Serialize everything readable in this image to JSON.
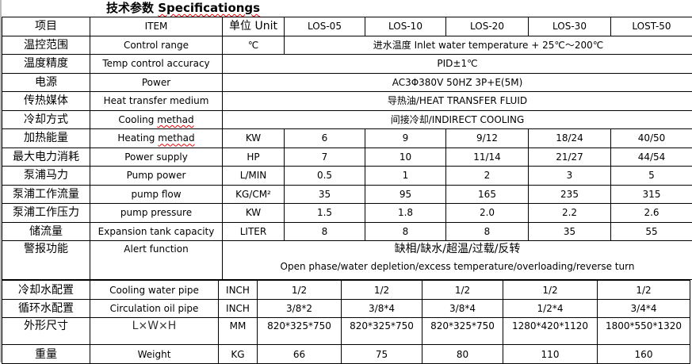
{
  "title_cn": "技术参数",
  "title_en": "Specificationgs",
  "header": {
    "cn": "项目",
    "item": "ITEM",
    "unit": "单位 Unit",
    "models": [
      "LOS-05",
      "LOS-10",
      "LOS-20",
      "LOS-30",
      "LOST-50"
    ]
  },
  "rows": [
    {
      "cn": "温控范围",
      "en": "Control range",
      "unit": "℃",
      "span5": "进水温度 Inlet water temperature + 25℃～200℃"
    },
    {
      "cn": "温度精度",
      "en": "Temp control accuracy",
      "span6": "PID±1℃"
    },
    {
      "cn": "电源",
      "en": "Power",
      "span6": "AC3Φ380V 50HZ 3P+E(5M)"
    },
    {
      "cn": "传热媒体",
      "en": "Heat transfer medium",
      "span6": "导热油/HEAT TRANSFER FLUID"
    },
    {
      "cn": "冷却方式",
      "en_a": "Cooling ",
      "en_b": "methad",
      "span6": "间接冷却/INDIRECT COOLING"
    },
    {
      "cn": "加热能量",
      "en_a": "Heating ",
      "en_b": "methad",
      "unit": "KW",
      "values": [
        "6",
        "9",
        "9/12",
        "18/24",
        "40/50"
      ]
    },
    {
      "cn": "最大电力消耗",
      "en": "Power supply",
      "unit": "HP",
      "values": [
        "7",
        "10",
        "11/14",
        "21/27",
        "44/54"
      ]
    },
    {
      "cn": "泵浦马力",
      "en": "Pump power",
      "unit": "L/MIN",
      "values": [
        "0.5",
        "1",
        "2",
        "3",
        "5"
      ]
    },
    {
      "cn": "泵浦工作流量",
      "en": "pump flow",
      "unit": "KG/CM²",
      "values": [
        "35",
        "95",
        "165",
        "235",
        "315"
      ]
    },
    {
      "cn": "泵浦工作压力",
      "en": "pump pressure",
      "unit": "KW",
      "values": [
        "1.5",
        "1.8",
        "2.0",
        "2.2",
        "2.6"
      ]
    },
    {
      "cn": "储流量",
      "en": "Expansion tank capacity",
      "unit": "LITER",
      "values": [
        "8",
        "8",
        "8",
        "35",
        "55"
      ]
    },
    {
      "cn": "警报功能",
      "en": "Alert function",
      "line1": "缺相/缺水/超温/过载/反转",
      "line2": "Open phase/water depletion/excess temperature/overloading/reverse turn"
    }
  ],
  "rows2": [
    {
      "cn": "冷却水配置",
      "en": "Cooling water pipe",
      "unit": "INCH",
      "values": [
        "1/2",
        "1/2",
        "1/2",
        "1/2",
        "1/2"
      ]
    },
    {
      "cn": "循环水配置",
      "en": "Circulation oil pipe",
      "unit": "INCH",
      "values": [
        "3/8*2",
        "3/8*4",
        "3/8*4",
        "1/2*4",
        "3/4*4"
      ]
    },
    {
      "cn": "外形尺寸",
      "en": "L×W×H",
      "unit": "MM",
      "values": [
        "820*325*750",
        "820*325*750",
        "820*325*750",
        "1280*420*1120",
        "1800*550*1320"
      ]
    },
    {
      "cn": "重量",
      "en": "Weight",
      "unit": "KG",
      "values": [
        "66",
        "75",
        "80",
        "110",
        "160"
      ]
    }
  ]
}
